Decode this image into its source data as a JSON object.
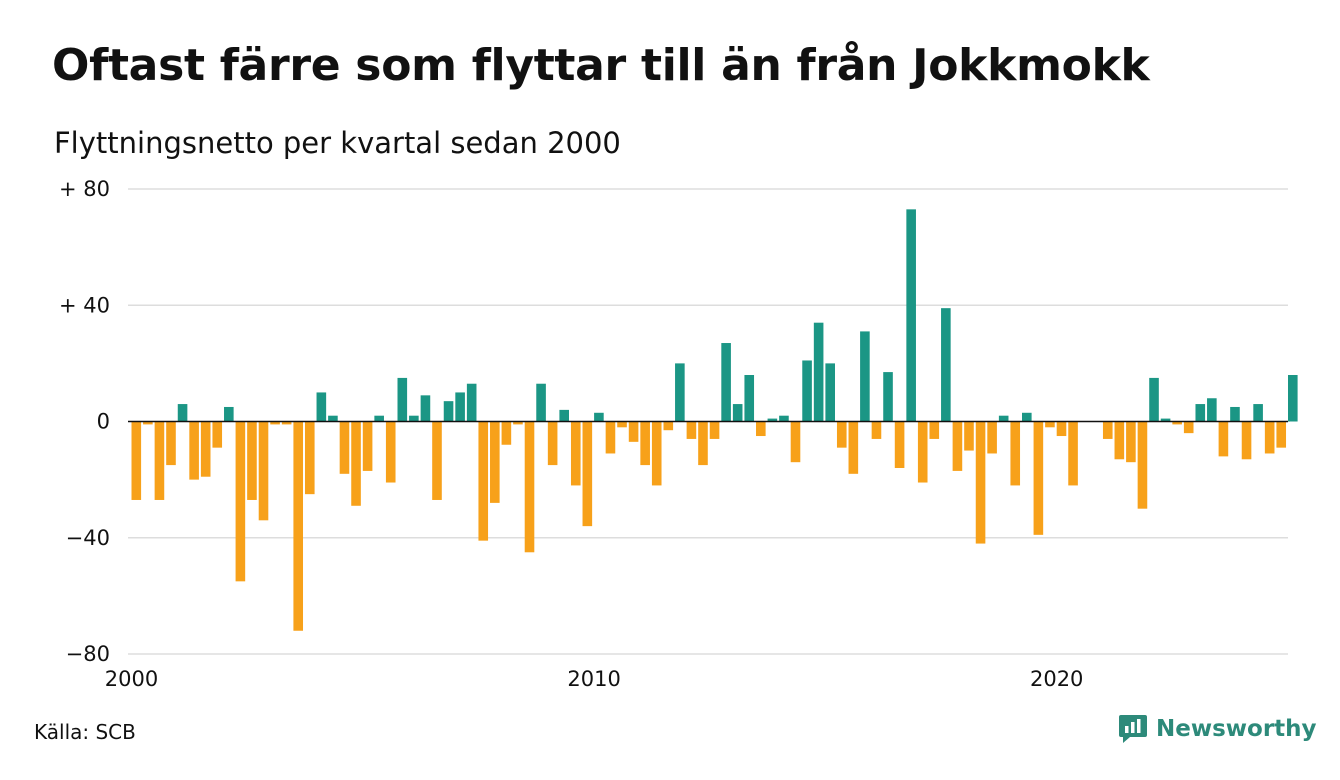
{
  "title": "Oftast färre som flyttar till än från Jokkmokk",
  "subtitle": "Flyttningsnetto per kvartal sedan 2000",
  "source": "Källa: SCB",
  "brand": "Newsworthy",
  "colors": {
    "positive": "#1b9685",
    "negative": "#f7a11a",
    "grid": "#dddddd",
    "brand": "#2d8a7a"
  },
  "chart_data": {
    "type": "bar",
    "title": "Oftast färre som flyttar till än från Jokkmokk",
    "subtitle": "Flyttningsnetto per kvartal sedan 2000",
    "xlabel": "",
    "ylabel": "",
    "ylim": [
      -80,
      80
    ],
    "yticks": [
      {
        "value": 80,
        "label": "+ 80"
      },
      {
        "value": 40,
        "label": "+ 40"
      },
      {
        "value": 0,
        "label": "0"
      },
      {
        "value": -40,
        "label": "−40"
      },
      {
        "value": -80,
        "label": "−80"
      }
    ],
    "xticks": [
      {
        "year": 2000,
        "label": "2000"
      },
      {
        "year": 2010,
        "label": "2010"
      },
      {
        "year": 2020,
        "label": "2020"
      }
    ],
    "grid": true,
    "start": "2000 Q1",
    "values": [
      -27,
      -1,
      -27,
      -15,
      6,
      -20,
      -19,
      -9,
      5,
      -55,
      -27,
      -34,
      -1,
      -1,
      -72,
      -25,
      10,
      2,
      -18,
      -29,
      -17,
      2,
      -21,
      15,
      2,
      9,
      -27,
      7,
      10,
      13,
      -41,
      -28,
      -8,
      -1,
      -45,
      13,
      -15,
      4,
      -22,
      -36,
      3,
      -11,
      -2,
      -7,
      -15,
      -22,
      -3,
      20,
      -6,
      -15,
      -6,
      27,
      6,
      16,
      -5,
      1,
      2,
      -14,
      21,
      34,
      20,
      -9,
      -18,
      31,
      -6,
      17,
      -16,
      73,
      -21,
      -6,
      39,
      -17,
      -10,
      -42,
      -11,
      2,
      -22,
      3,
      -39,
      -2,
      -5,
      -22,
      0,
      0,
      -6,
      -13,
      -14,
      -30,
      15,
      1,
      -1,
      -4,
      6,
      8,
      -12,
      5,
      -13,
      6,
      -11,
      -9,
      16
    ]
  }
}
